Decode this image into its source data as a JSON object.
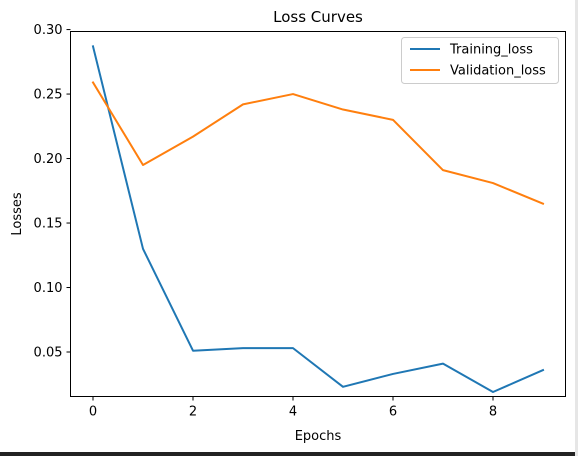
{
  "chart_data": {
    "type": "line",
    "title": "Loss Curves",
    "xlabel": "Epochs",
    "ylabel": "Losses",
    "x": [
      0,
      1,
      2,
      3,
      4,
      5,
      6,
      7,
      8,
      9
    ],
    "xlim": [
      -0.45,
      9.45
    ],
    "ylim": [
      0.0155,
      0.2985
    ],
    "xticks": [
      0,
      2,
      4,
      6,
      8
    ],
    "xtick_labels": [
      "0",
      "2",
      "4",
      "6",
      "8"
    ],
    "yticks": [
      0.05,
      0.1,
      0.15,
      0.2,
      0.25,
      0.3
    ],
    "ytick_labels": [
      "0.05",
      "0.10",
      "0.15",
      "0.20",
      "0.25",
      "0.30"
    ],
    "grid": false,
    "legend_position": "top-right",
    "series": [
      {
        "name": "Training_loss",
        "color": "#1f77b4",
        "values": [
          0.287,
          0.13,
          0.051,
          0.053,
          0.053,
          0.023,
          0.033,
          0.041,
          0.019,
          0.036
        ]
      },
      {
        "name": "Validation_loss",
        "color": "#ff7f0e",
        "values": [
          0.259,
          0.195,
          0.217,
          0.242,
          0.25,
          0.238,
          0.23,
          0.191,
          0.181,
          0.165
        ]
      }
    ]
  }
}
